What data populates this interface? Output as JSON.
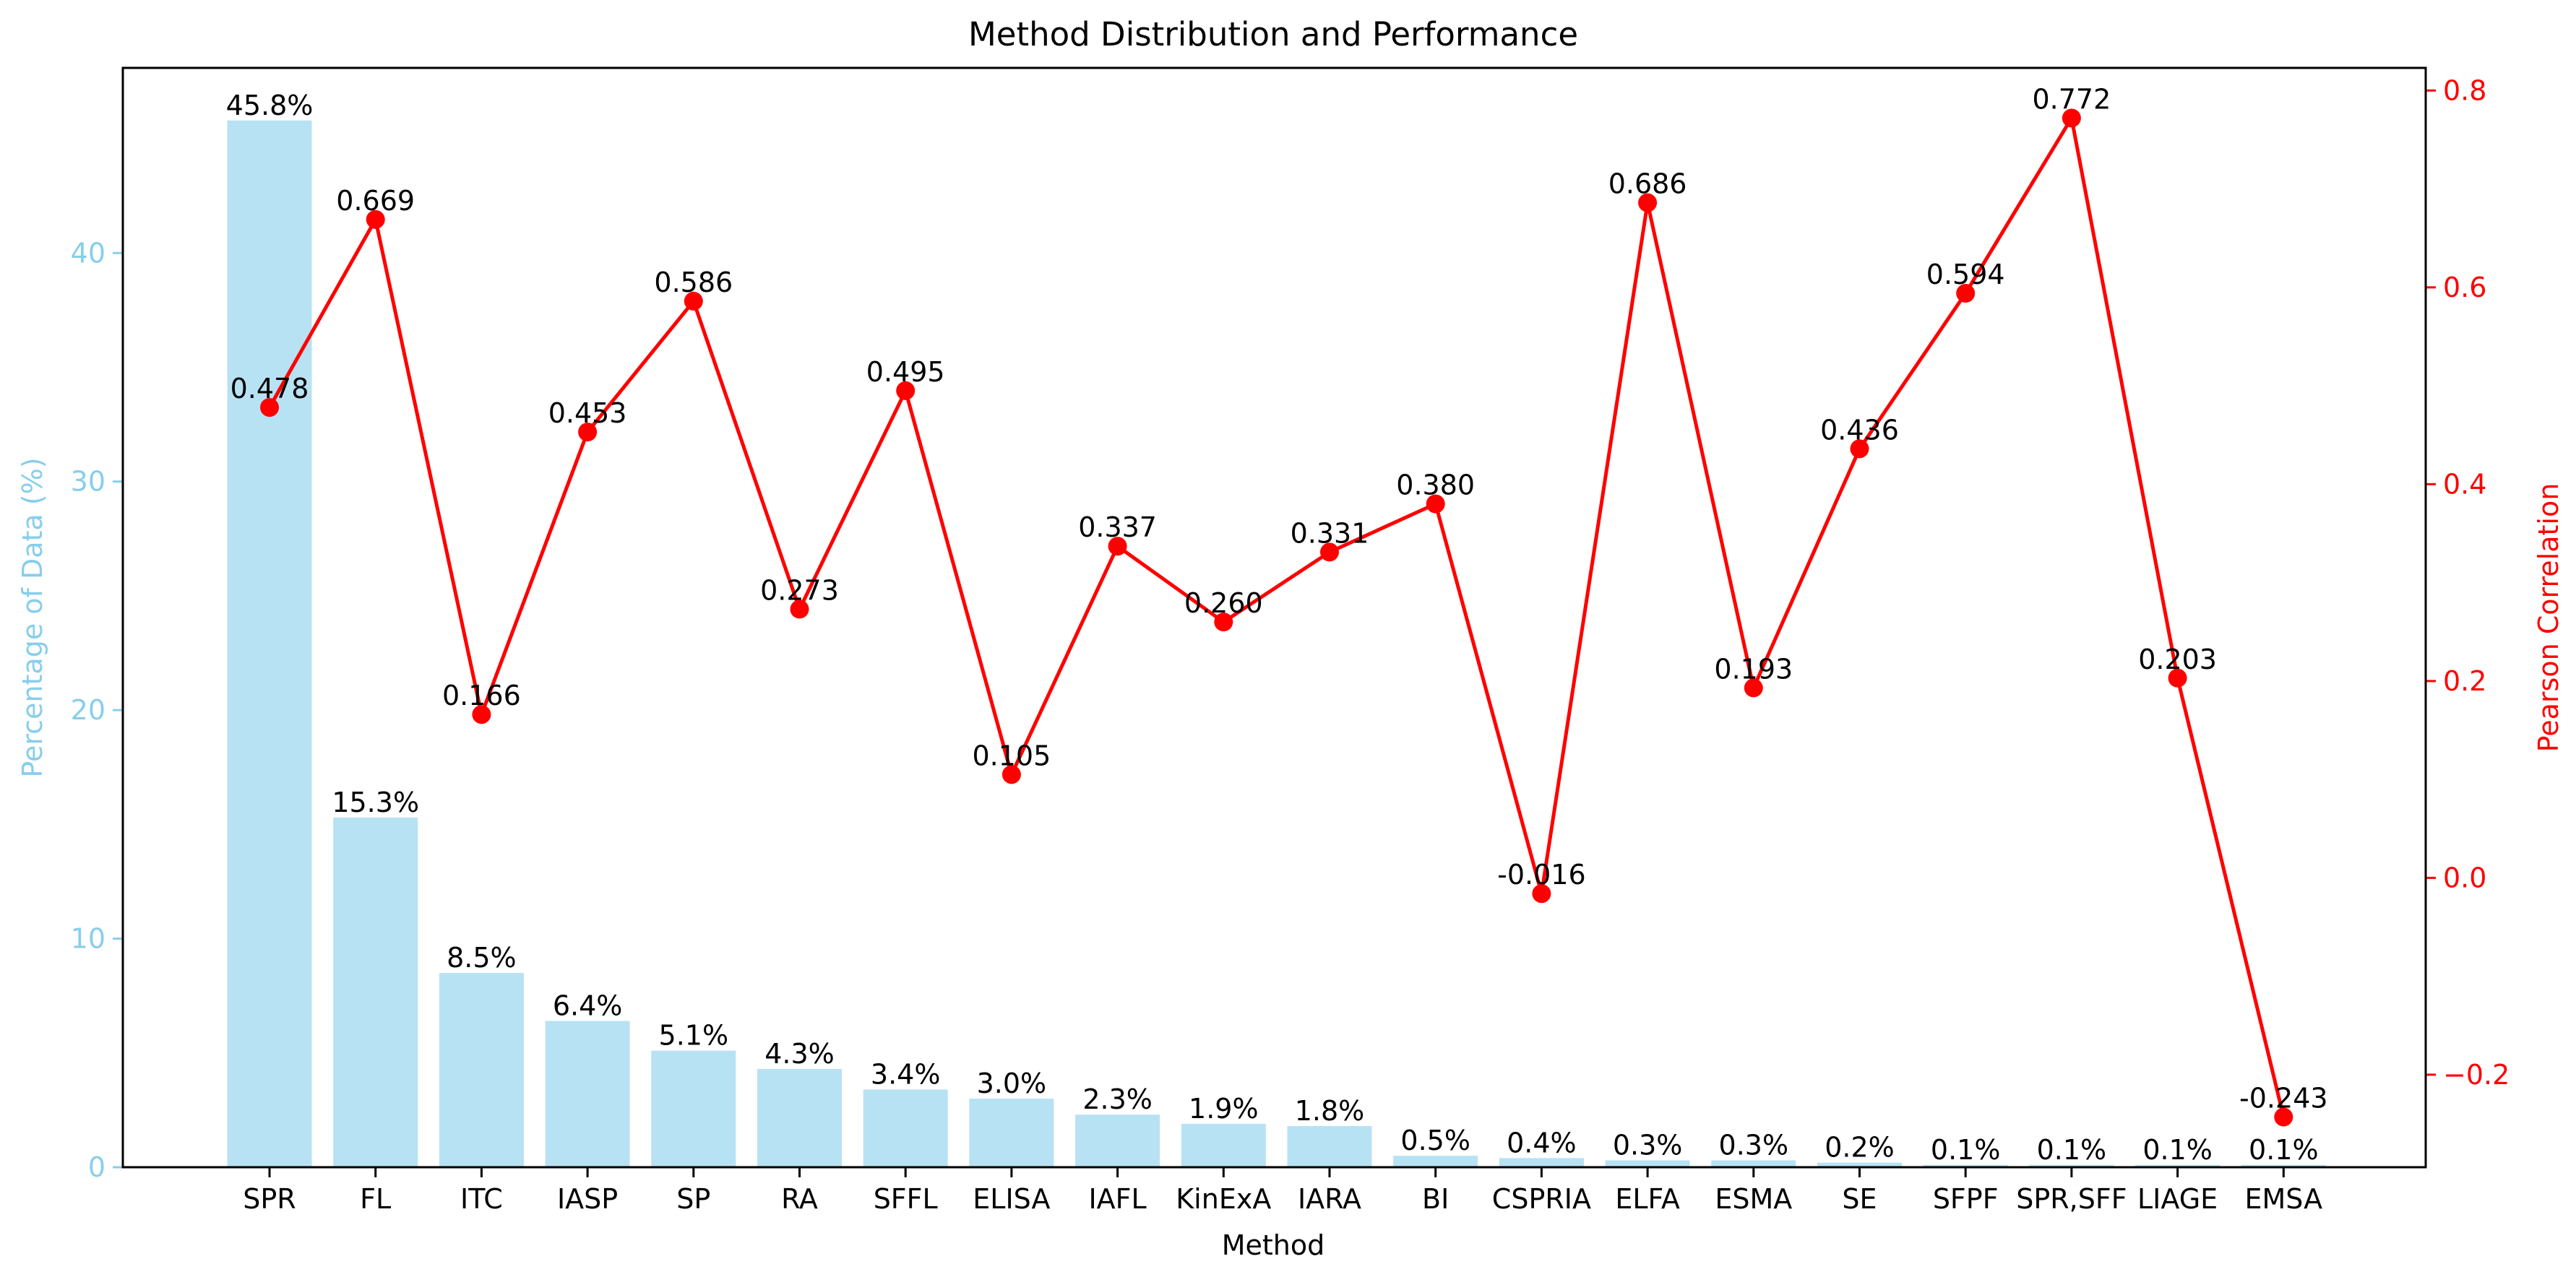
{
  "chart_data": {
    "type": "bar",
    "title": "Method Distribution and Performance",
    "xlabel": "Method",
    "ylabel_left": "Percentage of Data (%)",
    "ylabel_right": "Pearson Correlation",
    "categories": [
      "SPR",
      "FL",
      "ITC",
      "IASP",
      "SP",
      "RA",
      "SFFL",
      "ELISA",
      "IAFL",
      "KinExA",
      "IARA",
      "BI",
      "CSPRIA",
      "ELFA",
      "ESMA",
      "SE",
      "SFPF",
      "SPR,SFF",
      "LIAGE",
      "EMSA"
    ],
    "series": [
      {
        "type": "bar",
        "axis": "left",
        "values": [
          45.8,
          15.3,
          8.5,
          6.4,
          5.1,
          4.3,
          3.4,
          3.0,
          2.3,
          1.9,
          1.8,
          0.5,
          0.4,
          0.3,
          0.3,
          0.2,
          0.1,
          0.1,
          0.1,
          0.1
        ],
        "labels": [
          "45.8%",
          "15.3%",
          "8.5%",
          "6.4%",
          "5.1%",
          "4.3%",
          "3.4%",
          "3.0%",
          "2.3%",
          "1.9%",
          "1.8%",
          "0.5%",
          "0.4%",
          "0.3%",
          "0.3%",
          "0.2%",
          "0.1%",
          "0.1%",
          "0.1%",
          "0.1%"
        ],
        "color": "#87ceeb"
      },
      {
        "type": "line",
        "axis": "right",
        "values": [
          0.478,
          0.669,
          0.166,
          0.453,
          0.586,
          0.273,
          0.495,
          0.105,
          0.337,
          0.26,
          0.331,
          0.38,
          -0.016,
          0.686,
          0.193,
          0.436,
          0.594,
          0.772,
          0.203,
          -0.243
        ],
        "labels": [
          "0.478",
          "0.669",
          "0.166",
          "0.453",
          "0.586",
          "0.273",
          "0.495",
          "0.105",
          "0.337",
          "0.260",
          "0.331",
          "0.380",
          "-0.016",
          "0.686",
          "0.193",
          "0.436",
          "0.594",
          "0.772",
          "0.203",
          "-0.243"
        ],
        "color": "#ff0000"
      }
    ],
    "ylim_left": [
      0,
      48.1
    ],
    "ylim_right": [
      -0.294,
      0.823
    ],
    "yticks_left": [
      "0",
      "10",
      "20",
      "30",
      "40"
    ],
    "yticks_right": [
      "−0.2",
      "0.0",
      "0.2",
      "0.4",
      "0.6",
      "0.8"
    ],
    "left_axis_color": "#87ceeb",
    "right_axis_color": "#ff0000",
    "grid": false,
    "legend": "none"
  }
}
